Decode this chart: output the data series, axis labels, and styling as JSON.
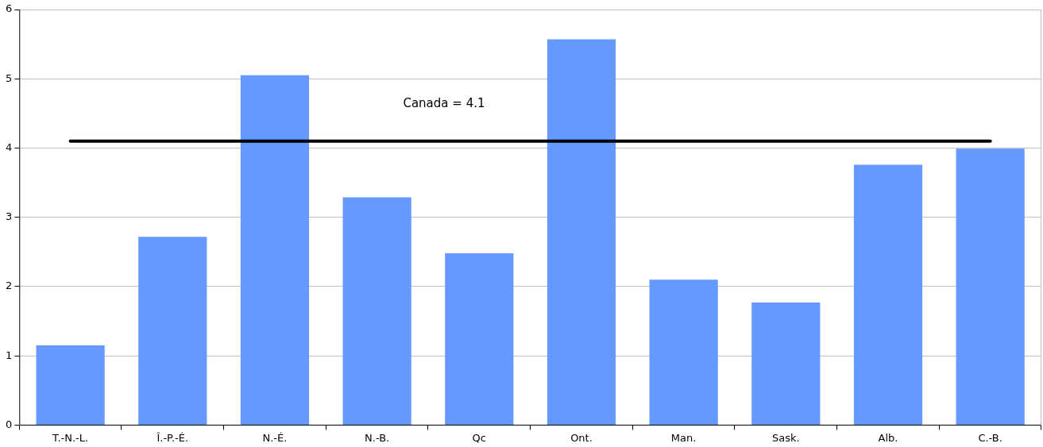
{
  "chart_data": {
    "type": "bar",
    "categories": [
      "T.-N.-L.",
      "Î.-P.-É.",
      "N.-É.",
      "N.-B.",
      "Qc",
      "Ont.",
      "Man.",
      "Sask.",
      "Alb.",
      "C.-B."
    ],
    "values": [
      1.15,
      2.72,
      5.05,
      3.29,
      2.48,
      5.57,
      2.1,
      1.77,
      3.76,
      3.99
    ],
    "color": "#6699ff",
    "ylim": [
      0,
      6
    ],
    "yticks": [
      0,
      1,
      2,
      3,
      4,
      5,
      6
    ],
    "grid": "y",
    "ref_lines": [
      {
        "axis": "y",
        "value": 4.1,
        "label": "Canada = 4.1",
        "color": "#000000"
      }
    ]
  }
}
